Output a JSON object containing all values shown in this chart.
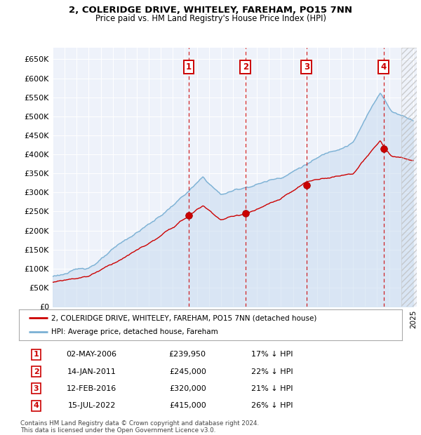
{
  "title1": "2, COLERIDGE DRIVE, WHITELEY, FAREHAM, PO15 7NN",
  "title2": "Price paid vs. HM Land Registry's House Price Index (HPI)",
  "xlim_start": 1995.0,
  "xlim_end": 2025.3,
  "ylim": [
    0,
    680000
  ],
  "yticks": [
    0,
    50000,
    100000,
    150000,
    200000,
    250000,
    300000,
    350000,
    400000,
    450000,
    500000,
    550000,
    600000,
    650000
  ],
  "ytick_labels": [
    "£0",
    "£50K",
    "£100K",
    "£150K",
    "£200K",
    "£250K",
    "£300K",
    "£350K",
    "£400K",
    "£450K",
    "£500K",
    "£550K",
    "£600K",
    "£650K"
  ],
  "sales": [
    {
      "date_num": 2006.33,
      "price": 239950,
      "label": "1"
    },
    {
      "date_num": 2011.04,
      "price": 245000,
      "label": "2"
    },
    {
      "date_num": 2016.12,
      "price": 320000,
      "label": "3"
    },
    {
      "date_num": 2022.54,
      "price": 415000,
      "label": "4"
    }
  ],
  "sale_color": "#cc0000",
  "hpi_color": "#7ab0d4",
  "hpi_fill_color": "#ddeeff",
  "legend_items": [
    {
      "label": "2, COLERIDGE DRIVE, WHITELEY, FAREHAM, PO15 7NN (detached house)",
      "color": "#cc0000"
    },
    {
      "label": "HPI: Average price, detached house, Fareham",
      "color": "#7ab0d4"
    }
  ],
  "table_rows": [
    {
      "num": "1",
      "date": "02-MAY-2006",
      "price": "£239,950",
      "pct": "17% ↓ HPI"
    },
    {
      "num": "2",
      "date": "14-JAN-2011",
      "price": "£245,000",
      "pct": "22% ↓ HPI"
    },
    {
      "num": "3",
      "date": "12-FEB-2016",
      "price": "£320,000",
      "pct": "21% ↓ HPI"
    },
    {
      "num": "4",
      "date": "15-JUL-2022",
      "price": "£415,000",
      "pct": "26% ↓ HPI"
    }
  ],
  "footer": "Contains HM Land Registry data © Crown copyright and database right 2024.\nThis data is licensed under the Open Government Licence v3.0.",
  "bg_color": "#eef2fa",
  "grid_color": "#ffffff"
}
